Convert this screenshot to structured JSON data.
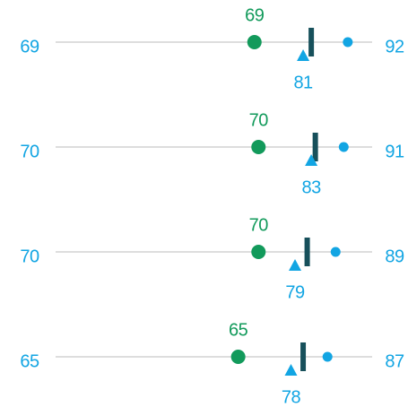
{
  "chart_data": {
    "type": "dot-range",
    "xlim": [
      20,
      98
    ],
    "colors": {
      "actual": "#129a5b",
      "forecast": "#12a5e3",
      "target": "#17505b",
      "track": "#dddddd"
    },
    "rows": [
      {
        "actual": 69,
        "forecast": 81,
        "target": 83,
        "max": 92
      },
      {
        "actual": 70,
        "forecast": 83,
        "target": 84,
        "max": 91
      },
      {
        "actual": 70,
        "forecast": 79,
        "target": 82,
        "max": 89
      },
      {
        "actual": 65,
        "forecast": 78,
        "target": 81,
        "max": 87
      }
    ]
  }
}
